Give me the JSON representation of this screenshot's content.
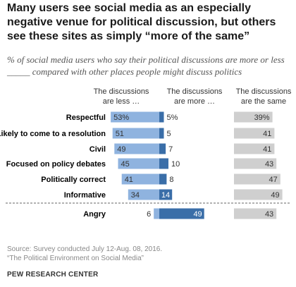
{
  "title": "Many users see social media as an especially negative venue for political discussion, but others see these sites as simply “more of the same”",
  "subtitle": "% of social media users who say their political discussions are more or less _____ compared with other places people might discuss politics",
  "colors": {
    "less": "#8fb3df",
    "more": "#3a6ea8",
    "same": "#cfcfcf",
    "divider": "#666666"
  },
  "chart_data": {
    "type": "bar",
    "columns": {
      "less": "The discussions are less …",
      "more": "The discussions are more …",
      "same": "The discussions are the same"
    },
    "categories": [
      "Respectful",
      "Likely to come to a resolution",
      "Civil",
      "Focused on policy debates",
      "Politically correct",
      "Informative",
      "Angry"
    ],
    "series": [
      {
        "name": "The discussions are less …",
        "values": [
          53,
          51,
          49,
          45,
          41,
          34,
          6
        ]
      },
      {
        "name": "The discussions are more …",
        "values": [
          5,
          5,
          7,
          10,
          8,
          14,
          49
        ]
      },
      {
        "name": "The discussions are the same",
        "values": [
          39,
          41,
          41,
          43,
          47,
          49,
          43
        ]
      }
    ],
    "value_labels": {
      "less": [
        "53%",
        "51",
        "49",
        "45",
        "41",
        "34",
        "6"
      ],
      "more": [
        "5%",
        "5",
        "7",
        "10",
        "8",
        "14",
        "49"
      ],
      "same": [
        "39%",
        "41",
        "41",
        "43",
        "47",
        "49",
        "43"
      ]
    }
  },
  "footer": {
    "source_line1": "Source: Survey conducted July 12-Aug. 08, 2016.",
    "source_line2": "“The Political Environment on Social Media”",
    "brand": "PEW RESEARCH CENTER"
  }
}
